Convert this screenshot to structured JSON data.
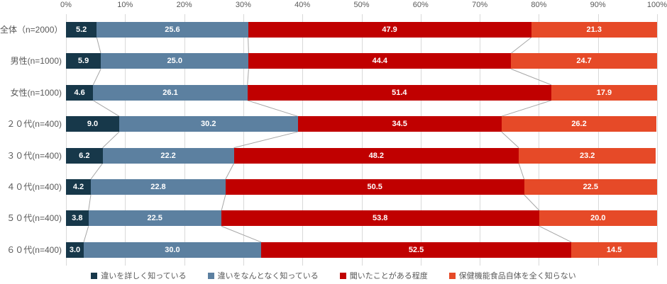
{
  "chart_data": {
    "type": "bar",
    "variant": "horizontal-stacked",
    "title": "",
    "categories": [
      "全体（n=2000）",
      "男性(n=1000)",
      "女性(n=1000)",
      "２０代(n=400)",
      "３０代(n=400)",
      "４０代(n=400)",
      "５０代(n=400)",
      "６０代(n=400)"
    ],
    "series": [
      {
        "name": "違いを詳しく知っている",
        "color": "#17384a",
        "values": [
          5.2,
          5.9,
          4.6,
          9.0,
          6.2,
          4.2,
          3.8,
          3.0
        ]
      },
      {
        "name": "違いをなんとなく知っている",
        "color": "#5c80a0",
        "values": [
          25.6,
          25.0,
          26.1,
          30.2,
          22.2,
          22.8,
          22.5,
          30.0
        ]
      },
      {
        "name": "聞いたことがある程度",
        "color": "#c00000",
        "values": [
          47.9,
          44.4,
          51.4,
          34.5,
          48.2,
          50.5,
          53.8,
          52.5
        ]
      },
      {
        "name": "保健機能食品自体を全く知らない",
        "color": "#e64a28",
        "values": [
          21.3,
          24.7,
          17.9,
          26.2,
          23.2,
          22.5,
          20.0,
          14.5
        ]
      }
    ],
    "x_axis": {
      "position": "top",
      "min": 0,
      "max": 100,
      "ticks": [
        "0%",
        "10%",
        "20%",
        "30%",
        "40%",
        "50%",
        "60%",
        "70%",
        "80%",
        "90%",
        "100%"
      ],
      "grid": true
    },
    "value_label_format": "one-decimal",
    "legend_position": "bottom"
  },
  "style": {
    "gridline_color": "#d9d9d9",
    "connector_line_color": "#a6a6a6",
    "axis_text_color": "#595959",
    "value_text_color": "#ffffff"
  }
}
